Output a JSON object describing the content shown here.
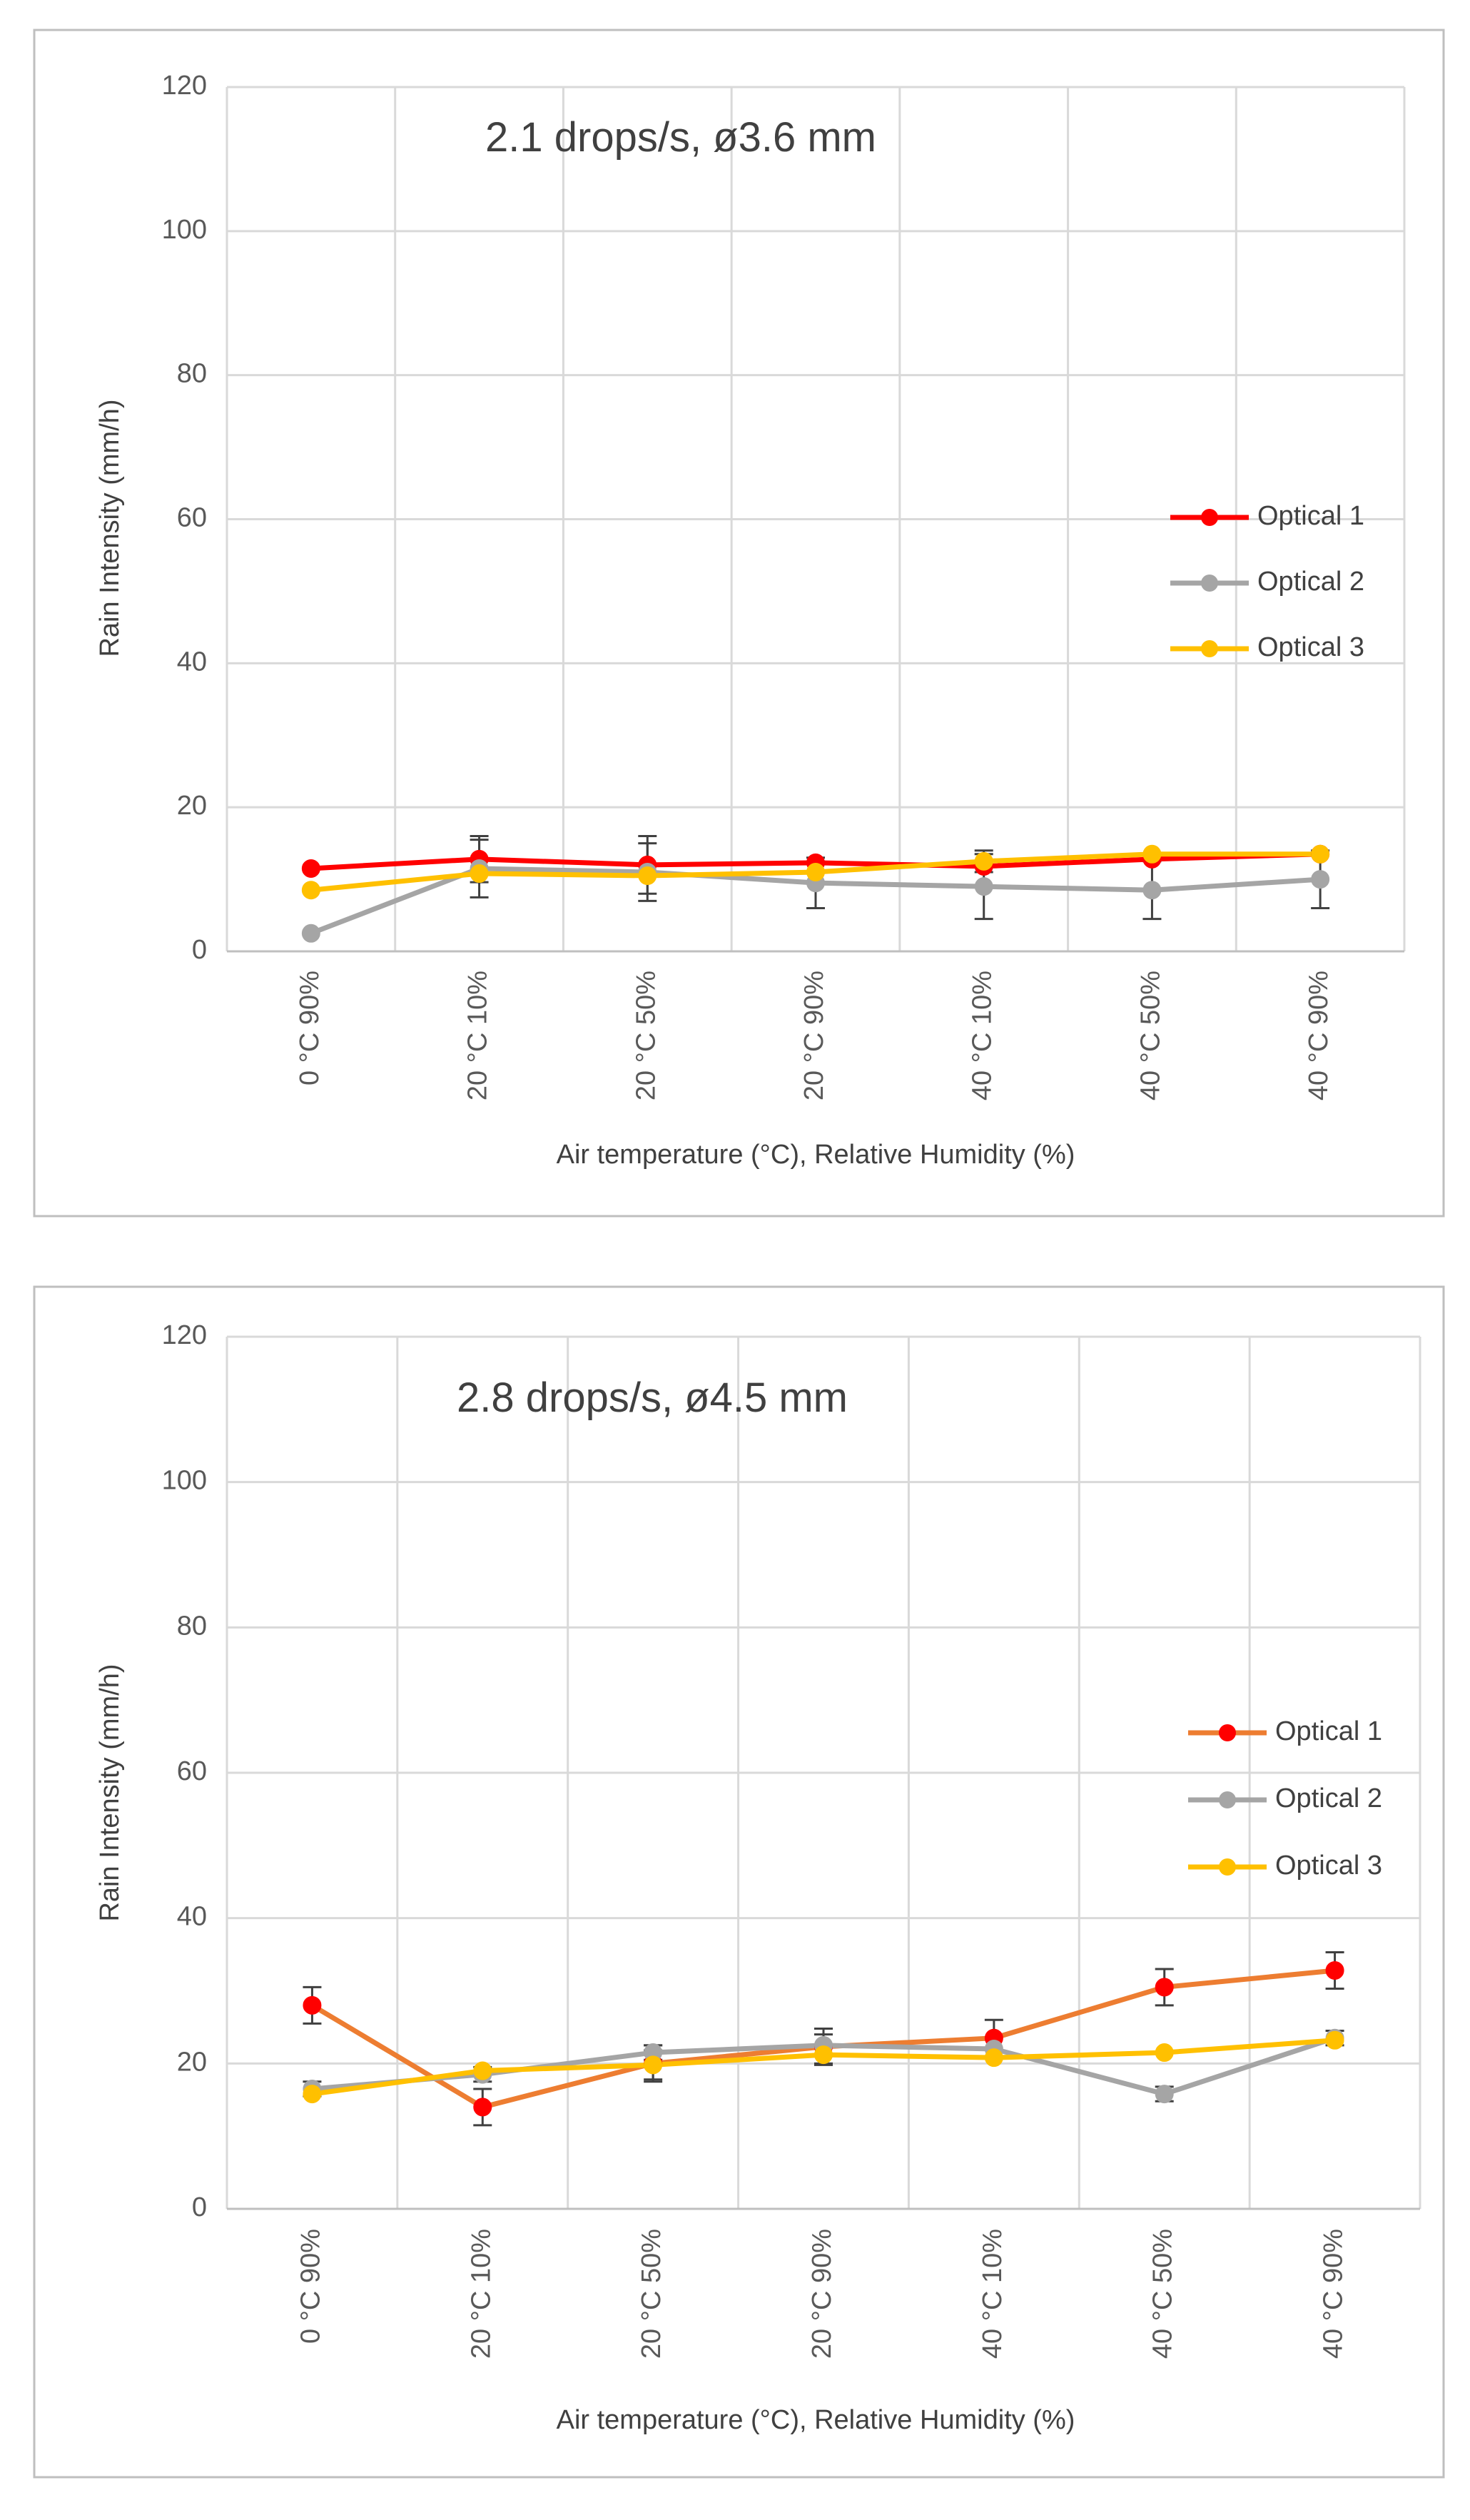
{
  "chart_data": [
    {
      "type": "line",
      "title": "2.1 drops/s, ø3.6 mm",
      "xlabel": "Air temperature  (°C), Relative Humidity (%)",
      "ylabel": "Rain Intensity (mm/h)",
      "categories": [
        "0 °C 90%",
        "20 °C 10%",
        "20 °C 50%",
        "20 °C 90%",
        "40 °C 10%",
        "40 °C 50%",
        "40 °C 90%"
      ],
      "ylim": [
        0,
        120
      ],
      "yticks": [
        0,
        20,
        40,
        60,
        80,
        100,
        120
      ],
      "grid": true,
      "legend_position": "right",
      "series": [
        {
          "name": "Optical 1",
          "color": "#ff0000",
          "marker_color": "#ff0000",
          "values": [
            11.5,
            12.8,
            12.0,
            12.3,
            11.8,
            12.8,
            13.5
          ],
          "error": [
            null,
            3.2,
            4.0,
            null,
            null,
            null,
            null
          ]
        },
        {
          "name": "Optical 2",
          "color": "#a5a5a5",
          "marker_color": "#a5a5a5",
          "values": [
            2.5,
            11.5,
            11.0,
            9.5,
            9.0,
            8.5,
            10.0
          ],
          "error": [
            null,
            4.0,
            4.0,
            3.5,
            4.5,
            4.0,
            4.0
          ]
        },
        {
          "name": "Optical 3",
          "color": "#ffc000",
          "marker_color": "#ffc000",
          "values": [
            8.5,
            10.8,
            10.5,
            11.0,
            12.5,
            13.5,
            13.5
          ],
          "error": [
            null,
            null,
            null,
            null,
            1.5,
            null,
            null
          ]
        }
      ]
    },
    {
      "type": "line",
      "title": "2.8 drops/s, ø4.5 mm",
      "xlabel": "Air temperature  (°C), Relative Humidity (%)",
      "ylabel": "Rain Intensity (mm/h)",
      "categories": [
        "0 °C 90%",
        "20 °C 10%",
        "20 °C 50%",
        "20 °C 90%",
        "40 °C 10%",
        "40 °C 50%",
        "40 °C 90%"
      ],
      "ylim": [
        0,
        120
      ],
      "yticks": [
        0,
        20,
        40,
        60,
        80,
        100,
        120
      ],
      "grid": true,
      "legend_position": "right",
      "series": [
        {
          "name": "Optical 1",
          "color": "#ed7d31",
          "marker_color": "#ff0000",
          "values": [
            28.0,
            14.0,
            20.0,
            22.3,
            23.5,
            30.5,
            32.8
          ],
          "error": [
            2.5,
            2.5,
            2.5,
            2.5,
            2.5,
            2.5,
            2.5
          ]
        },
        {
          "name": "Optical 2",
          "color": "#a5a5a5",
          "marker_color": "#a5a5a5",
          "values": [
            16.5,
            18.5,
            21.5,
            22.5,
            22.0,
            15.8,
            23.5
          ],
          "error": [
            1.0,
            1.0,
            1.0,
            1.5,
            null,
            1.0,
            1.0
          ]
        },
        {
          "name": "Optical 3",
          "color": "#ffc000",
          "marker_color": "#ffc000",
          "values": [
            15.8,
            19.0,
            19.8,
            21.2,
            20.8,
            21.5,
            23.2
          ],
          "error": [
            null,
            null,
            2.0,
            1.2,
            null,
            null,
            null
          ]
        }
      ]
    }
  ]
}
